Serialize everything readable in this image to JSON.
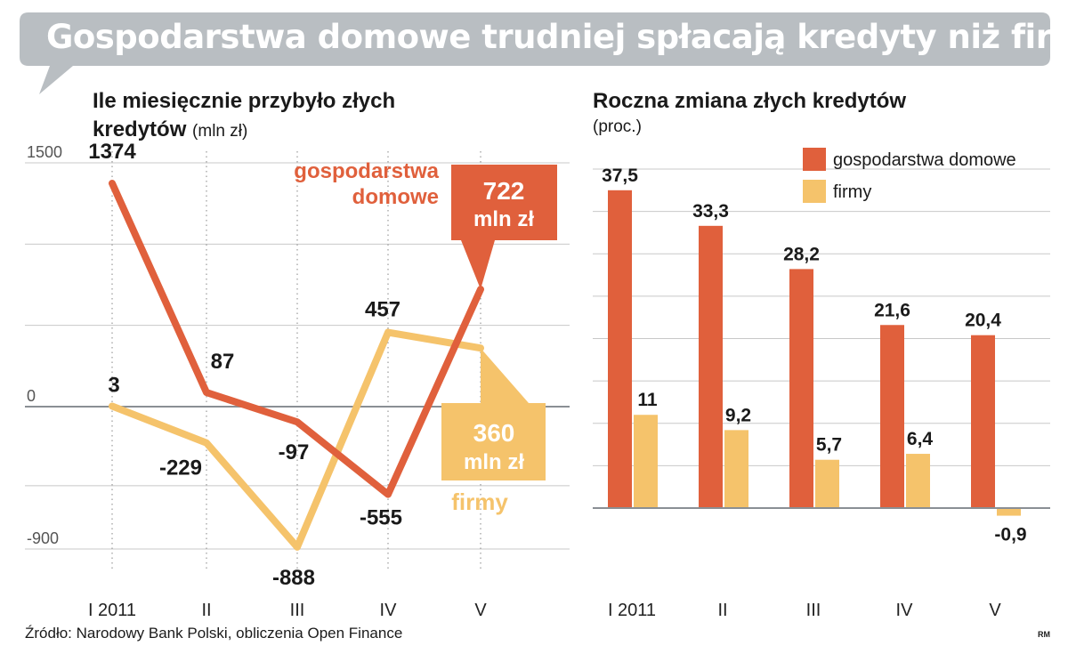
{
  "title": "Gospodarstwa domowe trudniej spłacają kredyty niż firmy",
  "source": "Źródło: Narodowy Bank Polski, obliczenia Open Finance",
  "credit": "RM",
  "colors": {
    "households": "#e0603c",
    "firms": "#f5c36b",
    "title_bg": "#b9bec2",
    "grid": "#c8c8c8",
    "axis": "#8a8f94"
  },
  "chart_data": [
    {
      "type": "line",
      "title": "Ile miesięcznie przybyło złych kredytów",
      "title_line1": "Ile miesięcznie przybyło złych",
      "title_line2": "kredytów",
      "unit": "(mln zł)",
      "categories": [
        "I 2011",
        "II",
        "III",
        "IV",
        "V"
      ],
      "ylim": [
        -900,
        1500
      ],
      "yticks": [
        1500,
        0,
        -900
      ],
      "ytick_labels": [
        "1500",
        "0",
        "-900"
      ],
      "grid": true,
      "series": [
        {
          "name": "gospodarstwa domowe",
          "name_line1": "gospodarstwa",
          "name_line2": "domowe",
          "values": [
            1374,
            87,
            -97,
            -555,
            722
          ],
          "point_labels": [
            "1374",
            "87",
            "-97",
            "-555",
            ""
          ],
          "callout_line1": "722",
          "callout_line2": "mln zł"
        },
        {
          "name": "firmy",
          "values": [
            3,
            -229,
            -888,
            457,
            360
          ],
          "point_labels": [
            "3",
            "-229",
            "-888",
            "457",
            ""
          ],
          "callout_line1": "360",
          "callout_line2": "mln zł"
        }
      ]
    },
    {
      "type": "bar",
      "title": "Roczna zmiana złych kredytów",
      "unit": "(proc.)",
      "categories": [
        "I 2011",
        "II",
        "III",
        "IV",
        "V"
      ],
      "ylim": [
        -5,
        40
      ],
      "grid": true,
      "legend": "top-right",
      "series": [
        {
          "name": "gospodarstwa domowe",
          "values": [
            37.5,
            33.3,
            28.2,
            21.6,
            20.4
          ],
          "labels": [
            "37,5",
            "33,3",
            "28,2",
            "21,6",
            "20,4"
          ]
        },
        {
          "name": "firmy",
          "values": [
            11,
            9.2,
            5.7,
            6.4,
            -0.9
          ],
          "labels": [
            "11",
            "9,2",
            "5,7",
            "6,4",
            "-0,9"
          ]
        }
      ]
    }
  ]
}
